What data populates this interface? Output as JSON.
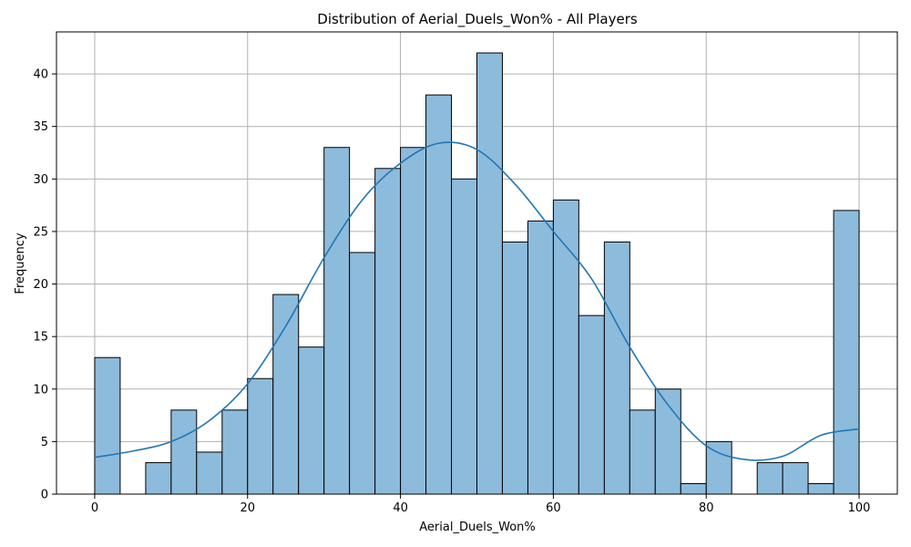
{
  "chart_data": {
    "type": "bar",
    "subtype": "histogram-with-kde",
    "title": "Distribution of Aerial_Duels_Won% - All Players",
    "xlabel": "Aerial_Duels_Won%",
    "ylabel": "Frequency",
    "xlim": [
      -5,
      105
    ],
    "ylim": [
      0,
      44
    ],
    "x_ticks": [
      0,
      20,
      40,
      60,
      80,
      100
    ],
    "y_ticks": [
      0,
      5,
      10,
      15,
      20,
      25,
      30,
      35,
      40
    ],
    "grid": true,
    "bin_edges": [
      0,
      3.33,
      6.67,
      10,
      13.33,
      16.67,
      20,
      23.33,
      26.67,
      30,
      33.33,
      36.67,
      40,
      43.33,
      46.67,
      50,
      53.33,
      56.67,
      60,
      63.33,
      66.67,
      70,
      73.33,
      76.67,
      80,
      83.33,
      86.67,
      90,
      93.33,
      96.67,
      100
    ],
    "values": [
      13,
      0,
      3,
      8,
      4,
      8,
      11,
      19,
      14,
      33,
      23,
      31,
      33,
      38,
      30,
      42,
      24,
      26,
      28,
      17,
      24,
      8,
      10,
      1,
      5,
      0,
      3,
      3,
      1,
      27
    ],
    "kde": {
      "x": [
        0,
        5,
        10,
        15,
        20,
        25,
        30,
        35,
        40,
        45,
        50,
        55,
        60,
        65,
        70,
        75,
        80,
        85,
        90,
        95,
        100
      ],
      "y": [
        3.5,
        4.1,
        5.0,
        7.0,
        10.5,
        16.0,
        22.5,
        28.0,
        31.5,
        33.4,
        32.8,
        29.5,
        25.0,
        20.5,
        14.0,
        8.5,
        4.6,
        3.3,
        3.6,
        5.6,
        6.2
      ]
    },
    "colors": {
      "bar_fill": "#8dbbdc",
      "bar_edge": "#000000",
      "kde_line": "#1f77b4",
      "grid": "#b0b0b0"
    }
  }
}
